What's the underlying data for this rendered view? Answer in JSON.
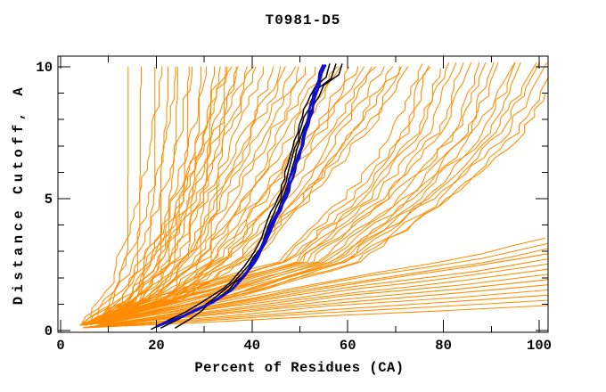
{
  "chart_data": {
    "type": "line",
    "title": "T0981-D5",
    "xlabel": "Percent of Residues (CA)",
    "ylabel": "Distance Cutoff, A",
    "xlim": [
      0,
      102
    ],
    "ylim": [
      0,
      10.4
    ],
    "x_major_ticks": [
      0,
      20,
      40,
      60,
      80,
      100
    ],
    "x_minor_ticks": [
      10,
      30,
      50,
      70,
      90
    ],
    "y_major_ticks": [
      0,
      5,
      10
    ],
    "y_minor_ticks": [
      1,
      2,
      3,
      4,
      6,
      7,
      8,
      9
    ],
    "grid": false,
    "legend": "none",
    "frame": "closed box, ticks point inward on all four sides",
    "colors": {
      "ensemble_orange": "#ff8c00",
      "reference_black": "#000000",
      "highlight_blue": "#0f10cf",
      "axis": "#000000",
      "background": "#ffffff"
    },
    "series": [
      {
        "name": "predicted-models-ensemble",
        "description": "large ensemble of model accuracy curves (percent of CA residues under each distance cutoff)",
        "color": "#ff8c00",
        "stroke_width": 1.05,
        "jitter": 1.0,
        "seed": 11,
        "families": [
          {
            "name": "steep-left-verticals",
            "count": 9,
            "anchors_lo": [
              [
                5,
                0.2
              ],
              [
                11,
                1.0
              ],
              [
                13.2,
                2.2
              ],
              [
                13.6,
                6.0
              ],
              [
                13.8,
                10.0
              ]
            ],
            "anchors_hi": [
              [
                8,
                0.3
              ],
              [
                26,
                1.3
              ],
              [
                30.5,
                2.6
              ],
              [
                32.5,
                6.0
              ],
              [
                34.5,
                10.0
              ]
            ]
          },
          {
            "name": "left-mid-risers",
            "count": 6,
            "anchors_lo": [
              [
                4,
                0.2
              ],
              [
                9,
                1.5
              ],
              [
                15,
                4.0
              ],
              [
                19,
                7.0
              ],
              [
                21,
                10.0
              ]
            ],
            "anchors_hi": [
              [
                6.5,
                0.25
              ],
              [
                15,
                1.5
              ],
              [
                25,
                4.0
              ],
              [
                32,
                7.0
              ],
              [
                36.5,
                10.0
              ]
            ]
          },
          {
            "name": "mid-sweepers",
            "count": 28,
            "anchors_lo": [
              [
                4,
                0.2
              ],
              [
                13,
                1.1
              ],
              [
                19,
                2.8
              ],
              [
                25,
                5.5
              ],
              [
                30,
                8.0
              ],
              [
                34,
                10.0
              ]
            ],
            "anchors_hi": [
              [
                8,
                0.3
              ],
              [
                24,
                1.1
              ],
              [
                40,
                2.8
              ],
              [
                55,
                5.5
              ],
              [
                66,
                8.0
              ],
              [
                73,
                10.0
              ]
            ]
          },
          {
            "name": "right-sweepers",
            "count": 20,
            "anchors_lo": [
              [
                5,
                0.2
              ],
              [
                20,
                1.3
              ],
              [
                45,
                2.6
              ],
              [
                60,
                5.0
              ],
              [
                70,
                7.5
              ],
              [
                75,
                10.1
              ]
            ],
            "anchors_hi": [
              [
                9,
                0.3
              ],
              [
                38,
                1.3
              ],
              [
                62,
                2.6
              ],
              [
                82,
                5.0
              ],
              [
                97,
                7.5
              ],
              [
                101.8,
                9.0
              ]
            ]
          },
          {
            "name": "shallow-bottom-right",
            "count": 14,
            "anchors_lo": [
              [
                5,
                0.1
              ],
              [
                30,
                0.3
              ],
              [
                55,
                0.55
              ],
              [
                80,
                0.75
              ],
              [
                101.8,
                0.95
              ]
            ],
            "anchors_hi": [
              [
                9,
                0.25
              ],
              [
                40,
                1.3
              ],
              [
                66,
                2.2
              ],
              [
                88,
                2.9
              ],
              [
                101.8,
                3.5
              ]
            ]
          }
        ]
      },
      {
        "name": "reference-models-black",
        "description": "three thin black accuracy curves tracking the highlighted bundle",
        "color": "#000000",
        "stroke_width": 1.5,
        "jitter": 0.25,
        "seed": 401,
        "curves": [
          [
            [
              19,
              0.05
            ],
            [
              22,
              0.35
            ],
            [
              26,
              0.7
            ],
            [
              30,
              1.1
            ],
            [
              34,
              1.6
            ],
            [
              37,
              2.1
            ],
            [
              39.5,
              2.7
            ],
            [
              41,
              3.2
            ],
            [
              42.5,
              3.8
            ],
            [
              44,
              4.5
            ],
            [
              45.5,
              5.0
            ],
            [
              46.3,
              5.5
            ],
            [
              47,
              6.0
            ],
            [
              48,
              6.6
            ],
            [
              49,
              7.2
            ],
            [
              50,
              7.8
            ],
            [
              51,
              8.4
            ],
            [
              52,
              8.9
            ],
            [
              53.5,
              9.3
            ],
            [
              55.5,
              9.6
            ],
            [
              56.2,
              10.1
            ]
          ],
          [
            [
              21,
              0.1
            ],
            [
              25,
              0.45
            ],
            [
              29,
              0.85
            ],
            [
              33,
              1.35
            ],
            [
              36.5,
              1.9
            ],
            [
              39.5,
              2.5
            ],
            [
              41.5,
              3.1
            ],
            [
              43,
              3.7
            ],
            [
              44.5,
              4.4
            ],
            [
              46,
              5.0
            ],
            [
              47,
              5.6
            ],
            [
              48,
              6.2
            ],
            [
              49,
              6.9
            ],
            [
              50,
              7.5
            ],
            [
              51,
              8.1
            ],
            [
              52.3,
              8.7
            ],
            [
              53.8,
              9.2
            ],
            [
              56.5,
              9.55
            ],
            [
              57.5,
              10.1
            ]
          ],
          [
            [
              24,
              0.1
            ],
            [
              27.5,
              0.5
            ],
            [
              31,
              1.0
            ],
            [
              35,
              1.55
            ],
            [
              38,
              2.05
            ],
            [
              40.5,
              2.6
            ],
            [
              42.3,
              3.2
            ],
            [
              44,
              3.9
            ],
            [
              45.5,
              4.6
            ],
            [
              47,
              5.2
            ],
            [
              48,
              5.9
            ],
            [
              49,
              6.5
            ],
            [
              50,
              7.1
            ],
            [
              51,
              7.7
            ],
            [
              52.5,
              8.3
            ],
            [
              54,
              8.9
            ],
            [
              55,
              9.3
            ],
            [
              58,
              9.7
            ],
            [
              58.8,
              10.1
            ]
          ]
        ]
      },
      {
        "name": "highlighted-models-blue",
        "description": "two thick blue highlighted accuracy curves",
        "color": "#0f10cf",
        "stroke_width": 2.6,
        "jitter": 0.2,
        "seed": 501,
        "curves": [
          [
            [
              20,
              0.15
            ],
            [
              25,
              0.5
            ],
            [
              31,
              1.0
            ],
            [
              35.5,
              1.5
            ],
            [
              38,
              2.0
            ],
            [
              40,
              2.5
            ],
            [
              41.5,
              3.0
            ],
            [
              42.8,
              3.5
            ],
            [
              44,
              4.0
            ],
            [
              45.5,
              4.5
            ],
            [
              46.8,
              5.0
            ],
            [
              47.5,
              5.5
            ],
            [
              48.3,
              6.0
            ],
            [
              49.3,
              6.5
            ],
            [
              50.3,
              7.0
            ],
            [
              51,
              7.5
            ],
            [
              51.8,
              8.0
            ],
            [
              52.3,
              8.5
            ],
            [
              53,
              9.0
            ],
            [
              53.8,
              9.5
            ],
            [
              54.8,
              10.05
            ]
          ],
          [
            [
              20.5,
              0.2
            ],
            [
              25.5,
              0.55
            ],
            [
              31.5,
              1.05
            ],
            [
              36,
              1.55
            ],
            [
              38.5,
              2.05
            ],
            [
              40.5,
              2.55
            ],
            [
              42,
              3.05
            ],
            [
              43.3,
              3.55
            ],
            [
              44.5,
              4.05
            ],
            [
              46,
              4.55
            ],
            [
              47.2,
              5.05
            ],
            [
              48,
              5.55
            ],
            [
              48.8,
              6.05
            ],
            [
              49.8,
              6.55
            ],
            [
              50.7,
              7.05
            ],
            [
              51.4,
              7.55
            ],
            [
              52.2,
              8.05
            ],
            [
              52.8,
              8.55
            ],
            [
              53.5,
              9.05
            ],
            [
              54.3,
              9.55
            ],
            [
              55.3,
              10.05
            ]
          ]
        ]
      }
    ]
  }
}
